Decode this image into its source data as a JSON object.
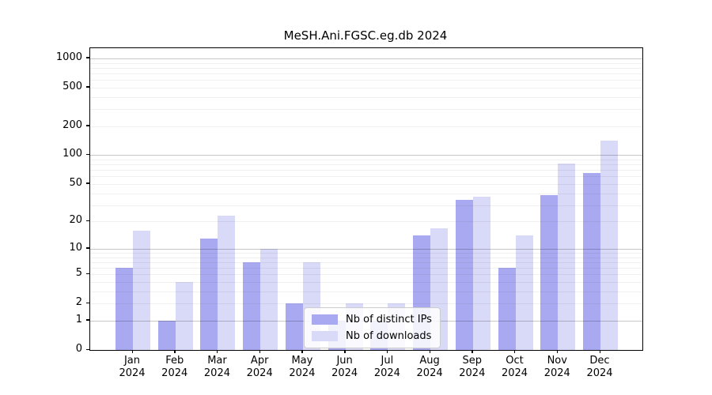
{
  "title": "MeSH.Ani.FGSC.eg.db 2024",
  "colors": {
    "distinct_ips": "#a9a9f1",
    "downloads": "#d9d9f8",
    "axis": "#000000",
    "major_grid": "#c8c8c8",
    "minor_grid": "#ececec",
    "background": "#ffffff"
  },
  "legend": {
    "items": [
      {
        "label": "Nb of distinct IPs",
        "color": "#a9a9f1"
      },
      {
        "label": "Nb of downloads",
        "color": "#d9d9f8"
      }
    ]
  },
  "chart_data": {
    "type": "bar",
    "title": "MeSH.Ani.FGSC.eg.db 2024",
    "x_months": [
      "Jan",
      "Feb",
      "Mar",
      "Apr",
      "May",
      "Jun",
      "Jul",
      "Aug",
      "Sep",
      "Oct",
      "Nov",
      "Dec"
    ],
    "x_year": "2024",
    "series": [
      {
        "name": "Nb of distinct IPs",
        "color": "#a9a9f1",
        "values": [
          6,
          1,
          13,
          7,
          2,
          1,
          1,
          14,
          34,
          6,
          38,
          65
        ]
      },
      {
        "name": "Nb of downloads",
        "color": "#d9d9f8",
        "values": [
          16,
          4,
          23,
          10,
          7,
          2,
          2,
          17,
          37,
          14,
          82,
          143
        ]
      }
    ],
    "y_scale": "log1p",
    "y_ticks": [
      0,
      1,
      2,
      5,
      10,
      20,
      50,
      100,
      200,
      500,
      1000
    ],
    "y_major_gridlines": [
      1,
      10,
      100,
      1000
    ],
    "ylim": [
      0,
      1260
    ],
    "grid": true,
    "legend_position": "inside-bottom-center"
  }
}
